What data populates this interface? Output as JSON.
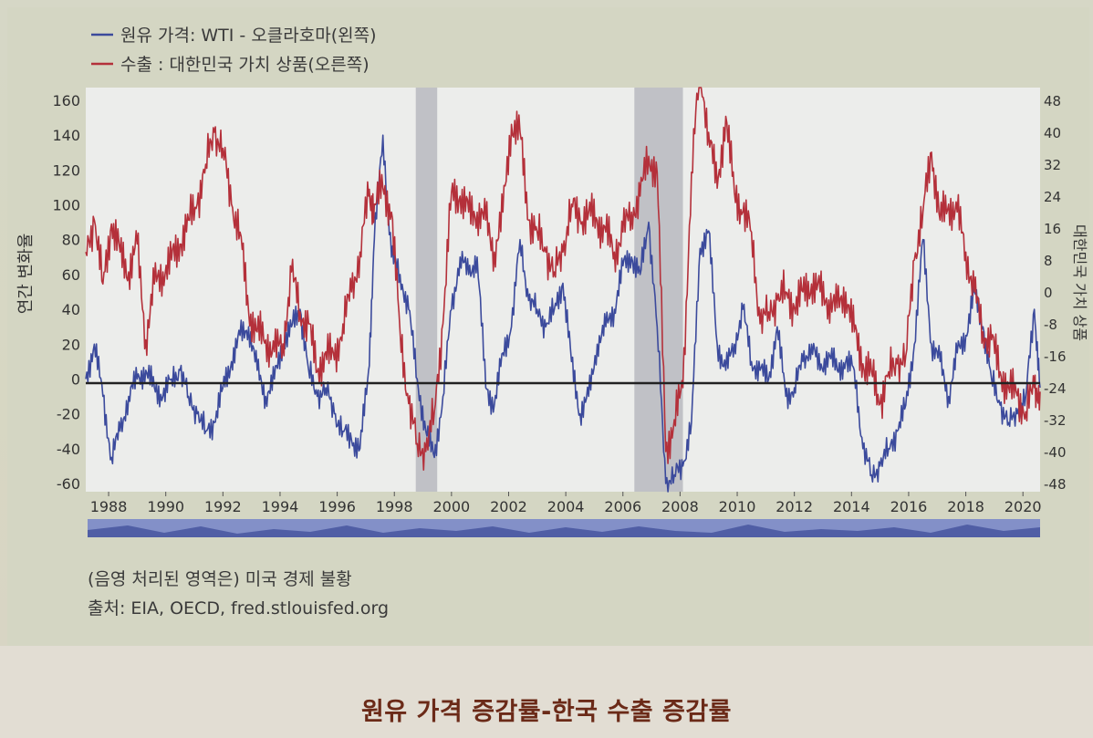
{
  "chart_data": {
    "type": "line",
    "legend": [
      {
        "label": "원유 가격: WTI - 오클라호마(왼쪽)",
        "color": "#3b4a9c"
      },
      {
        "label": "수출 : 대한민국 가치 상품(오른쪽)",
        "color": "#b4303a"
      }
    ],
    "ylabel_left": "연간 변화율",
    "ylabel_right": "대한민국 가치 상품",
    "ylim_left": [
      -60,
      160
    ],
    "ylim_right": [
      -48,
      48
    ],
    "yticks_left": [
      "160",
      "140",
      "120",
      "100",
      "80",
      "60",
      "40",
      "20",
      "0",
      "-20",
      "-40",
      "-60"
    ],
    "yticks_right": [
      "48",
      "40",
      "32",
      "24",
      "16",
      "8",
      "0",
      "-8",
      "-16",
      "-24",
      "-32",
      "-40",
      "-48"
    ],
    "xticks": [
      "1988",
      "1990",
      "1992",
      "1994",
      "1996",
      "1998",
      "2000",
      "2002",
      "2004",
      "2006",
      "2008",
      "2010",
      "2012",
      "2014",
      "2016",
      "2018",
      "2020"
    ],
    "xlim": [
      1987.2,
      2020.6
    ],
    "recessions": [
      [
        1998.75,
        1999.5
      ],
      [
        2006.4,
        2008.1
      ]
    ],
    "grid": false,
    "series": [
      {
        "name": "원유 가격: WTI - 오클라호마(왼쪽)",
        "axis": "left",
        "x": [
          1987.2,
          1987.5,
          1987.8,
          1988.1,
          1988.4,
          1988.7,
          1989.0,
          1989.3,
          1989.6,
          1989.9,
          1990.2,
          1990.5,
          1990.8,
          1991.1,
          1991.4,
          1991.7,
          1992.0,
          1992.3,
          1992.6,
          1992.9,
          1993.2,
          1993.5,
          1993.8,
          1994.1,
          1994.4,
          1994.7,
          1995.0,
          1995.3,
          1995.6,
          1995.9,
          1996.2,
          1996.5,
          1996.8,
          1997.1,
          1997.3,
          1997.6,
          1997.9,
          1998.2,
          1998.5,
          1998.8,
          1999.1,
          1999.4,
          1999.7,
          2000.0,
          2000.3,
          2000.6,
          2000.9,
          2001.2,
          2001.5,
          2001.8,
          2002.1,
          2002.4,
          2002.7,
          2003.0,
          2003.3,
          2003.6,
          2003.9,
          2004.2,
          2004.5,
          2004.8,
          2005.1,
          2005.4,
          2005.7,
          2006.0,
          2006.3,
          2006.6,
          2006.9,
          2007.2,
          2007.5,
          2007.8,
          2008.1,
          2008.4,
          2008.7,
          2009.0,
          2009.3,
          2009.6,
          2009.9,
          2010.2,
          2010.5,
          2010.8,
          2011.1,
          2011.4,
          2011.7,
          2012.0,
          2012.3,
          2012.6,
          2012.9,
          2013.2,
          2013.5,
          2013.8,
          2014.1,
          2014.4,
          2014.7,
          2015.0,
          2015.3,
          2015.6,
          2015.9,
          2016.2,
          2016.5,
          2016.8,
          2017.1,
          2017.4,
          2017.7,
          2018.0,
          2018.3,
          2018.6,
          2018.9,
          2019.2,
          2019.5,
          2019.8,
          2020.1,
          2020.4,
          2020.6
        ],
        "values": [
          0,
          20,
          -10,
          -45,
          -30,
          -10,
          0,
          5,
          -5,
          -10,
          0,
          5,
          -10,
          -20,
          -30,
          -25,
          -5,
          10,
          25,
          30,
          5,
          -10,
          0,
          20,
          30,
          40,
          5,
          -10,
          -5,
          -20,
          -30,
          -35,
          -40,
          5,
          80,
          140,
          70,
          60,
          40,
          0,
          -30,
          -45,
          -10,
          40,
          70,
          60,
          70,
          -5,
          -15,
          15,
          30,
          80,
          45,
          40,
          30,
          40,
          55,
          10,
          -20,
          -10,
          20,
          30,
          40,
          65,
          70,
          60,
          90,
          30,
          -60,
          -55,
          -50,
          -25,
          75,
          85,
          20,
          5,
          20,
          40,
          10,
          5,
          0,
          30,
          -10,
          -5,
          10,
          20,
          5,
          15,
          5,
          10,
          5,
          -40,
          -55,
          -50,
          -40,
          -30,
          -15,
          20,
          80,
          20,
          10,
          -10,
          15,
          25,
          50,
          30,
          0,
          -15,
          -25,
          -20,
          -10,
          40,
          -5
        ]
      },
      {
        "name": "수출 : 대한민국 가치 상품(오른쪽)",
        "axis": "right",
        "x": [
          1987.2,
          1987.5,
          1987.8,
          1988.1,
          1988.4,
          1988.7,
          1989.0,
          1989.3,
          1989.6,
          1989.9,
          1990.2,
          1990.5,
          1990.8,
          1991.1,
          1991.4,
          1991.7,
          1992.0,
          1992.3,
          1992.6,
          1992.9,
          1993.2,
          1993.5,
          1993.8,
          1994.1,
          1994.4,
          1994.7,
          1995.0,
          1995.3,
          1995.6,
          1995.9,
          1996.2,
          1996.5,
          1996.8,
          1997.1,
          1997.3,
          1997.6,
          1997.9,
          1998.2,
          1998.5,
          1998.8,
          1999.1,
          1999.4,
          1999.7,
          2000.0,
          2000.3,
          2000.6,
          2000.9,
          2001.2,
          2001.5,
          2001.8,
          2002.1,
          2002.4,
          2002.7,
          2003.0,
          2003.3,
          2003.6,
          2003.9,
          2004.2,
          2004.5,
          2004.8,
          2005.1,
          2005.4,
          2005.7,
          2006.0,
          2006.3,
          2006.6,
          2006.9,
          2007.2,
          2007.5,
          2007.8,
          2008.1,
          2008.4,
          2008.7,
          2009.0,
          2009.3,
          2009.6,
          2009.9,
          2010.2,
          2010.5,
          2010.8,
          2011.1,
          2011.4,
          2011.7,
          2012.0,
          2012.3,
          2012.6,
          2012.9,
          2013.2,
          2013.5,
          2013.8,
          2014.1,
          2014.4,
          2014.7,
          2015.0,
          2015.3,
          2015.6,
          2015.9,
          2016.2,
          2016.5,
          2016.8,
          2017.1,
          2017.4,
          2017.7,
          2018.0,
          2018.3,
          2018.6,
          2018.9,
          2019.2,
          2019.5,
          2019.8,
          2020.1,
          2020.4,
          2020.6
        ],
        "values": [
          10,
          18,
          2,
          17,
          10,
          5,
          12,
          -12,
          2,
          5,
          8,
          12,
          18,
          22,
          32,
          40,
          36,
          22,
          15,
          -5,
          -10,
          -12,
          -15,
          -13,
          5,
          -5,
          -8,
          -20,
          -15,
          -17,
          -8,
          0,
          10,
          24,
          22,
          26,
          20,
          -10,
          -28,
          -38,
          -40,
          -30,
          -8,
          25,
          24,
          20,
          20,
          18,
          10,
          20,
          42,
          40,
          18,
          15,
          10,
          5,
          10,
          22,
          18,
          20,
          18,
          15,
          10,
          15,
          20,
          24,
          34,
          30,
          -40,
          -32,
          -24,
          30,
          56,
          40,
          26,
          44,
          25,
          20,
          15,
          -8,
          -5,
          -2,
          0,
          -4,
          0,
          2,
          0,
          -2,
          -4,
          0,
          -10,
          -18,
          -20,
          -28,
          -20,
          -18,
          -16,
          8,
          20,
          35,
          18,
          22,
          20,
          10,
          0,
          -10,
          -12,
          -20,
          -24,
          -26,
          -30,
          -24,
          -25
        ]
      }
    ]
  },
  "notes": {
    "shading": "(음영 처리된 영역은) 미국 경제 불황",
    "source": "출처: EIA, OECD, fred.stlouisfed.org"
  },
  "caption": "원유 가격 증감률-한국 수출 증감률"
}
